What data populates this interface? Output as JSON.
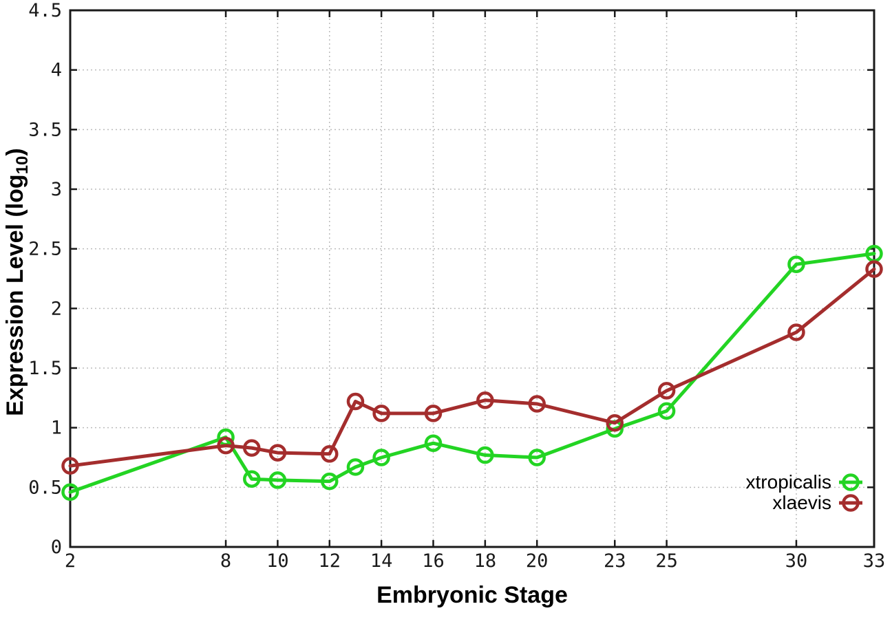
{
  "chart_data": {
    "type": "line",
    "title": "",
    "xlabel": "Embryonic Stage",
    "ylabel": "Expression Level (log10)",
    "ylabel_parts": {
      "prefix": "Expression Level (log",
      "sub": "10",
      "suffix": ")"
    },
    "x": [
      2,
      8,
      9,
      10,
      12,
      13,
      14,
      16,
      18,
      20,
      23,
      25,
      30,
      33
    ],
    "series": [
      {
        "name": "xtropicalis",
        "color": "#23d423",
        "marker": "open-circle",
        "values": [
          0.46,
          0.92,
          0.57,
          0.56,
          0.55,
          0.67,
          0.75,
          0.87,
          0.77,
          0.75,
          0.99,
          1.14,
          2.37,
          2.46
        ]
      },
      {
        "name": "xlaevis",
        "color": "#a42d2d",
        "marker": "open-circle",
        "values": [
          0.68,
          0.85,
          0.83,
          0.79,
          0.78,
          1.22,
          1.12,
          1.12,
          1.23,
          1.2,
          1.04,
          1.31,
          1.8,
          2.33
        ]
      }
    ],
    "xlim": [
      2,
      33
    ],
    "ylim": [
      0,
      4.5
    ],
    "xticks": {
      "values": [
        2,
        8,
        10,
        12,
        14,
        16,
        18,
        20,
        23,
        25,
        30,
        33
      ],
      "labels": [
        "2",
        "8",
        "10",
        "12",
        "14",
        "16",
        "18",
        "20",
        "23",
        "25",
        "30",
        "33"
      ]
    },
    "yticks": {
      "values": [
        0,
        0.5,
        1,
        1.5,
        2,
        2.5,
        3,
        3.5,
        4,
        4.5
      ],
      "labels": [
        "0",
        "0.5",
        "1",
        "1.5",
        "2",
        "2.5",
        "3",
        "3.5",
        "4",
        "4.5"
      ]
    },
    "grid": true,
    "grid_color": "#bbbbbb",
    "axis_color": "#1a1a1a",
    "legend_position": "bottom-right-inside",
    "legend": [
      "xtropicalis",
      "xlaevis"
    ]
  }
}
